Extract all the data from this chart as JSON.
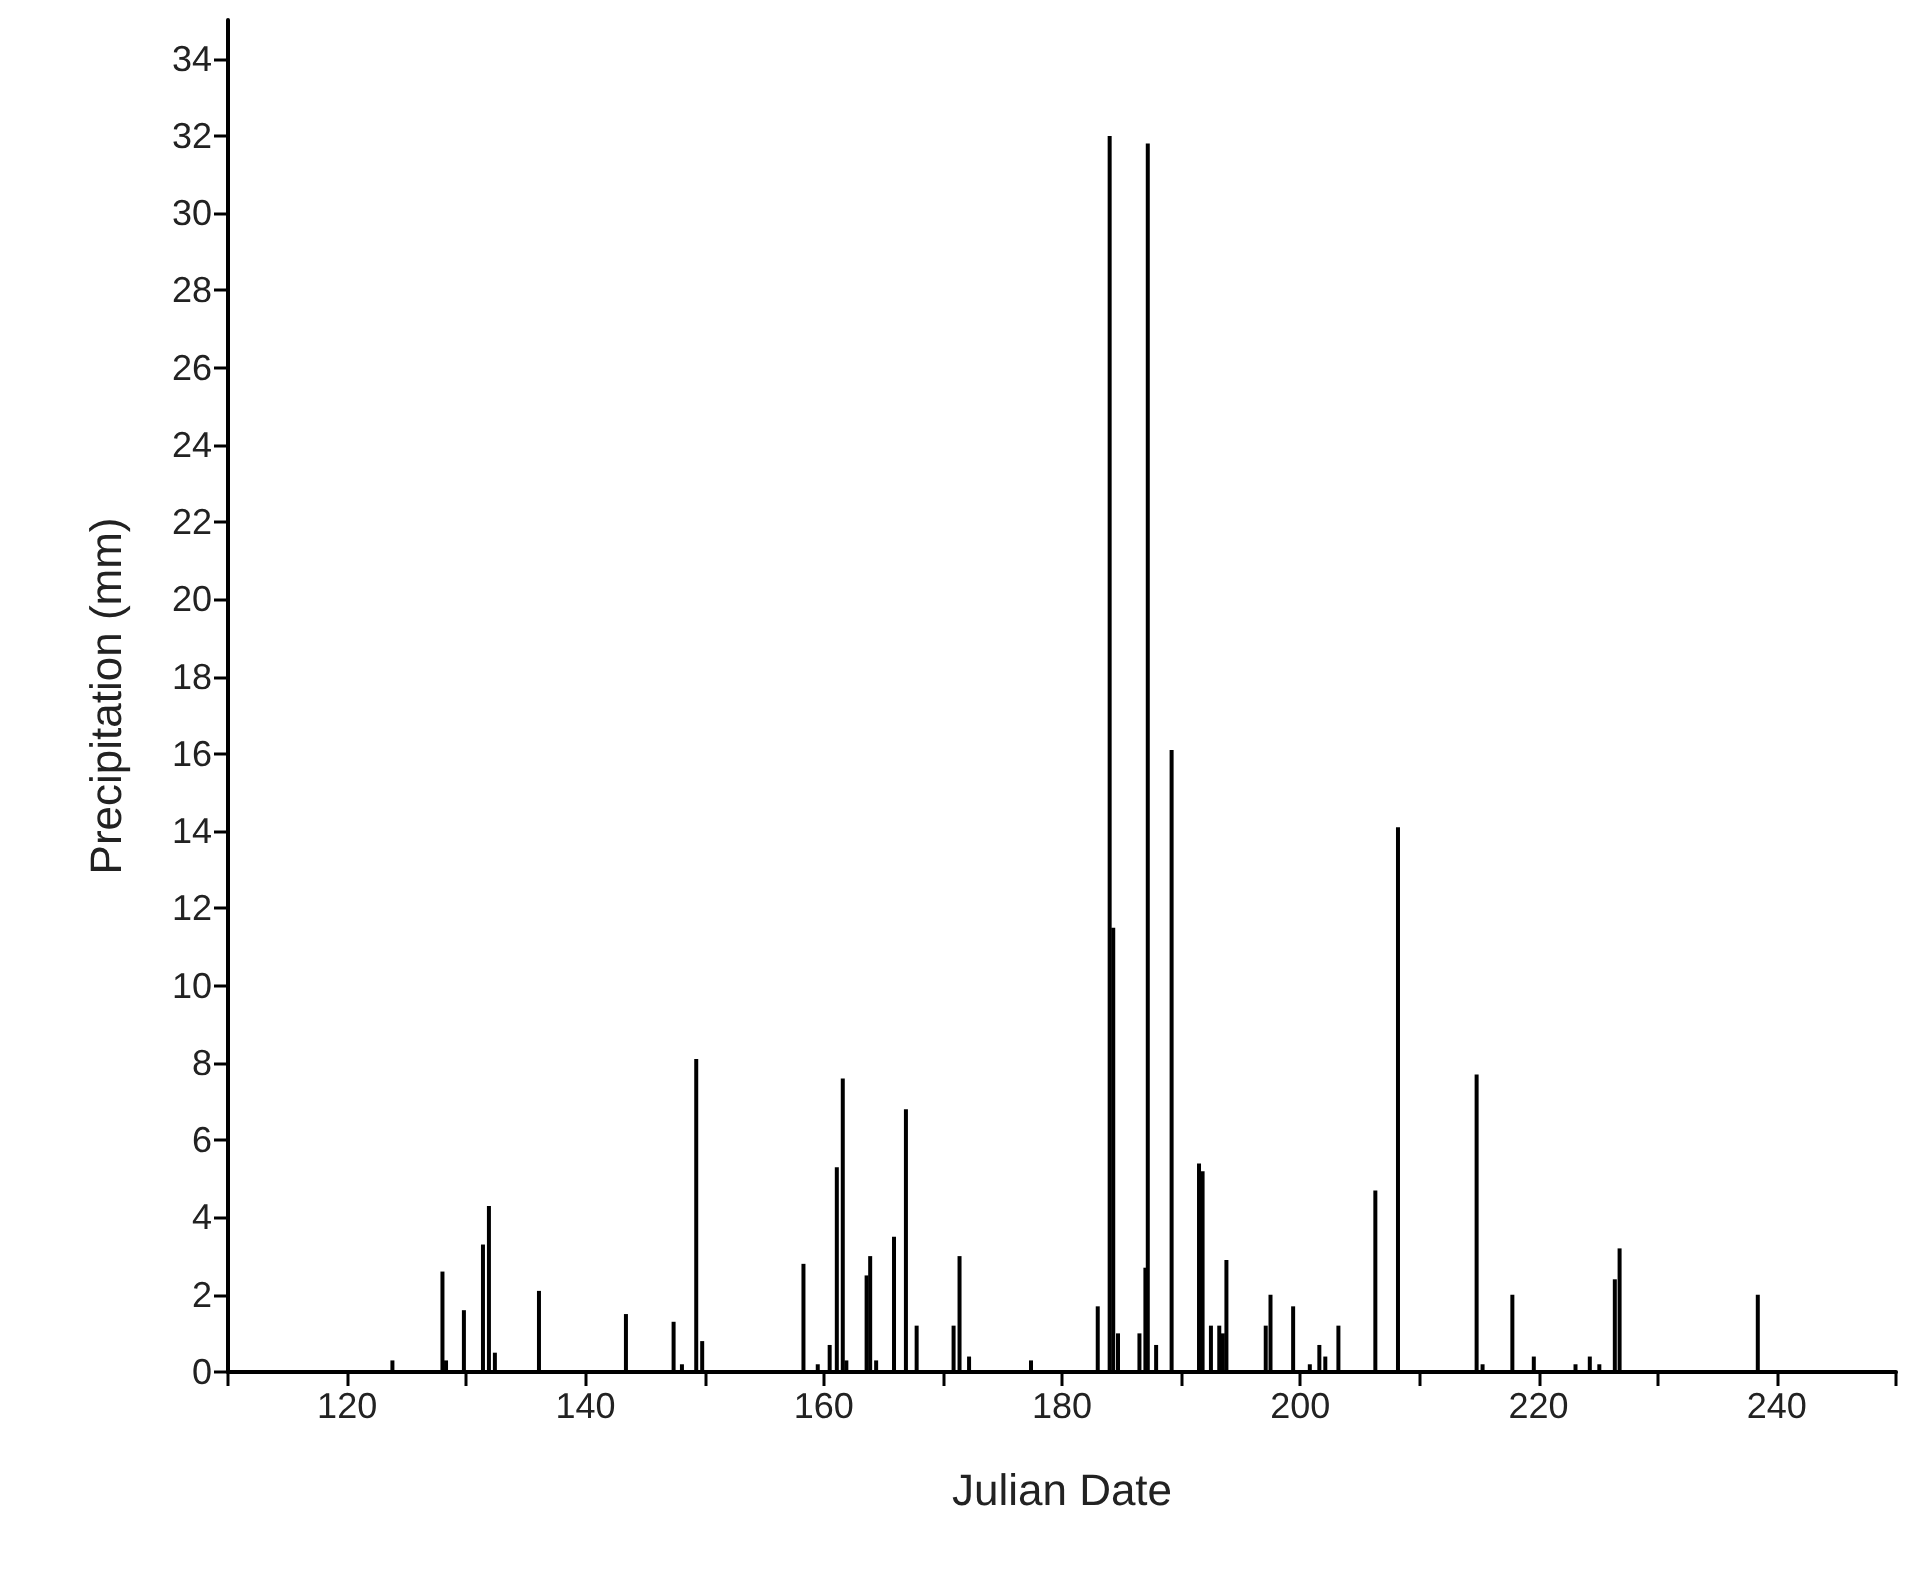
{
  "chart_data": {
    "type": "bar",
    "xlabel": "Julian Date",
    "ylabel": "Precipitation (mm)",
    "x": [
      123.8,
      128.0,
      128.3,
      129.8,
      131.4,
      131.9,
      132.4,
      136.1,
      143.4,
      147.4,
      148.1,
      149.3,
      149.8,
      158.3,
      159.5,
      160.5,
      161.1,
      161.6,
      161.9,
      163.6,
      163.9,
      164.4,
      165.9,
      166.9,
      167.8,
      170.9,
      171.4,
      172.2,
      177.4,
      183.0,
      184.0,
      184.3,
      184.7,
      186.5,
      187.0,
      187.2,
      187.9,
      189.2,
      191.5,
      191.8,
      192.5,
      193.2,
      193.5,
      193.8,
      197.1,
      197.5,
      199.4,
      200.8,
      201.6,
      202.1,
      203.2,
      206.3,
      208.2,
      214.8,
      215.3,
      217.8,
      219.6,
      223.1,
      224.3,
      225.1,
      226.4,
      226.8,
      238.4
    ],
    "values": [
      0.3,
      2.6,
      0.3,
      1.6,
      3.3,
      4.3,
      0.5,
      2.1,
      1.5,
      1.3,
      0.2,
      8.1,
      0.8,
      2.8,
      0.2,
      0.7,
      5.3,
      7.6,
      0.3,
      2.5,
      3.0,
      0.3,
      3.5,
      6.8,
      1.2,
      1.2,
      3.0,
      0.4,
      0.3,
      1.7,
      32.0,
      11.5,
      1.0,
      1.0,
      2.7,
      31.8,
      0.7,
      16.1,
      5.4,
      5.2,
      1.2,
      1.2,
      1.0,
      2.9,
      1.2,
      2.0,
      1.7,
      0.2,
      0.7,
      0.4,
      1.2,
      4.7,
      14.1,
      7.7,
      0.2,
      2.0,
      0.4,
      0.2,
      0.4,
      0.2,
      2.4,
      3.2,
      2.0
    ],
    "color": "#000000",
    "xlim": [
      110,
      250
    ],
    "xticks": [
      {
        "value": 110,
        "label": null
      },
      120,
      {
        "value": 130,
        "label": null
      },
      140,
      {
        "value": 150,
        "label": null
      },
      160,
      {
        "value": 170,
        "label": null
      },
      180,
      {
        "value": 190,
        "label": null
      },
      200,
      {
        "value": 210,
        "label": null
      },
      220,
      {
        "value": 230,
        "label": null
      },
      240,
      {
        "value": 250,
        "label": null
      }
    ],
    "ylim": [
      0,
      35
    ],
    "yticks": [
      0,
      2,
      4,
      6,
      8,
      10,
      12,
      14,
      16,
      18,
      20,
      22,
      24,
      26,
      28,
      30,
      32,
      34
    ],
    "grid": false
  }
}
